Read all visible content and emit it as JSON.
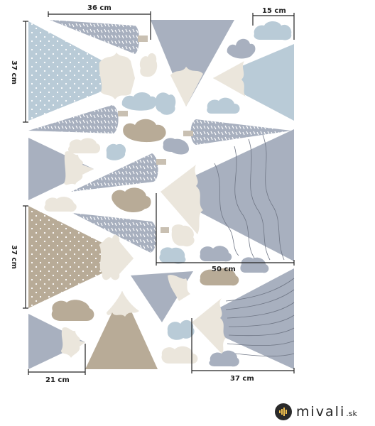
{
  "dimensions": {
    "top_width": "36 cm",
    "left_height_top": "37 cm",
    "cloud_width": "15 cm",
    "left_height_bottom": "37 cm",
    "middle_width": "50 cm",
    "bottom_left_width": "21 cm",
    "bottom_right_width": "37 cm"
  },
  "brand": {
    "name": "mivali",
    "domain": ".sk"
  },
  "colors": {
    "blue": "#b9cbd7",
    "grey": "#a8b0bf",
    "beige": "#b8ab97",
    "cream": "#ebe6dc",
    "line": "#222222"
  }
}
